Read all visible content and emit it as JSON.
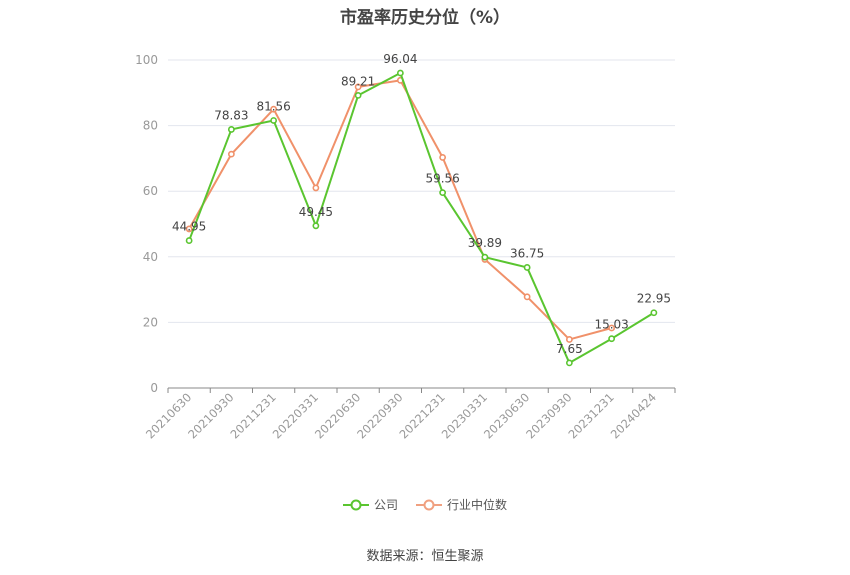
{
  "chart_data": {
    "type": "line",
    "title": "市盈率历史分位（%）",
    "categories": [
      "20210630",
      "20210930",
      "20211231",
      "20220331",
      "20220630",
      "20220930",
      "20221231",
      "20230331",
      "20230630",
      "20230930",
      "20231231",
      "20240424"
    ],
    "series": [
      {
        "name": "公司",
        "color": "#5ac530",
        "values": [
          44.95,
          78.83,
          81.56,
          49.45,
          89.21,
          96.04,
          59.56,
          39.89,
          36.75,
          7.65,
          15.03,
          22.95
        ]
      },
      {
        "name": "行业中位数",
        "color": "#f0916a",
        "values": [
          48.5,
          71.3,
          85.0,
          61.0,
          91.8,
          93.8,
          70.3,
          39.2,
          27.8,
          14.8,
          18.3,
          null
        ]
      }
    ],
    "data_labels": [
      "44.95",
      "78.83",
      "81.56",
      "49.45",
      "89.21",
      "96.04",
      "59.56",
      "39.89",
      "36.75",
      "7.65",
      "15.03",
      "22.95"
    ],
    "y_ticks": [
      0,
      20,
      40,
      60,
      80,
      100
    ],
    "ylim": [
      0,
      100
    ],
    "grid": true,
    "legend": "bottom"
  },
  "source": "数据来源：恒生聚源"
}
